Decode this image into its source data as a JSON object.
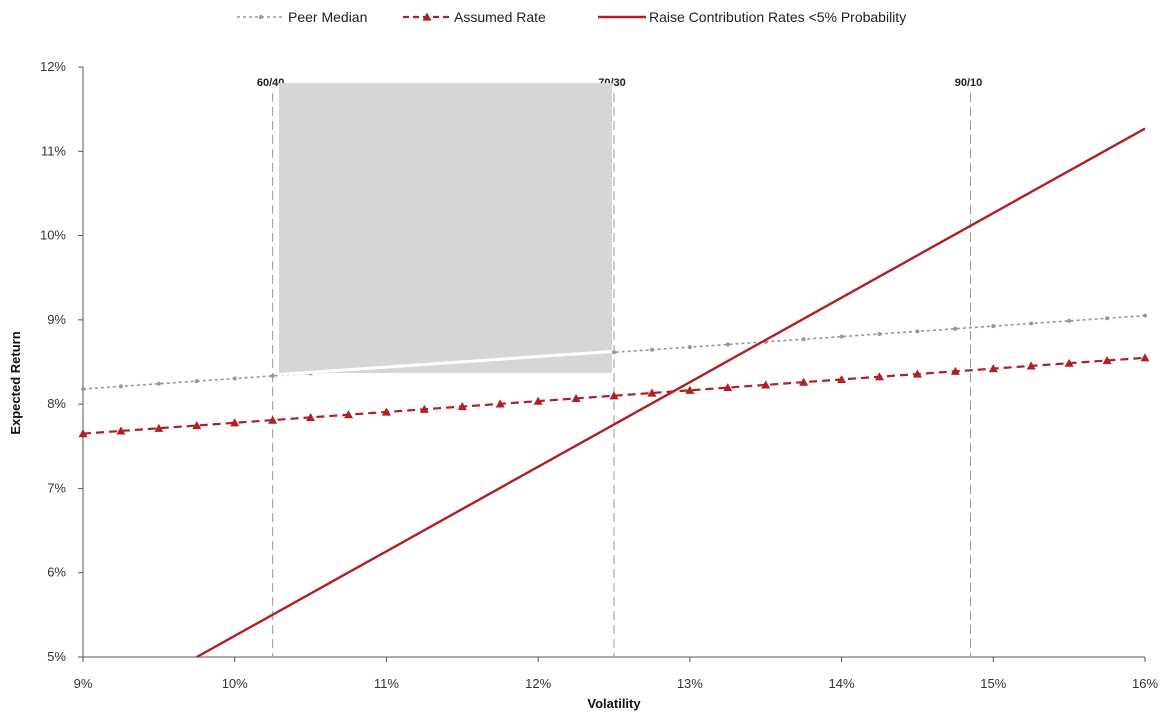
{
  "chart_data": {
    "type": "line",
    "xlabel": "Volatility",
    "ylabel": "Expected Return",
    "xlim": [
      9,
      16
    ],
    "ylim": [
      5,
      12
    ],
    "x_ticks": [
      "9%",
      "10%",
      "11%",
      "12%",
      "13%",
      "14%",
      "15%",
      "16%"
    ],
    "y_ticks": [
      "5%",
      "6%",
      "7%",
      "8%",
      "9%",
      "10%",
      "11%",
      "12%"
    ],
    "legend_position": "top-center",
    "reference_lines": [
      {
        "label": "60/40",
        "x": 10.25
      },
      {
        "label": "70/30",
        "x": 12.5
      },
      {
        "label": "90/10",
        "x": 14.85
      }
    ],
    "series": [
      {
        "name": "Peer Median",
        "color": "#8a9aa6",
        "style": "dotted",
        "marker": "dot",
        "points": [
          [
            9,
            8.18
          ],
          [
            16,
            9.05
          ]
        ]
      },
      {
        "name": "Assumed Rate",
        "color": "#b01f24",
        "style": "dashed",
        "marker": "triangle",
        "points": [
          [
            9,
            7.65
          ],
          [
            16,
            8.55
          ]
        ]
      },
      {
        "name": "Raise Contribution Rates <5% Probability",
        "color": "#b01f24",
        "style": "solid",
        "marker": "none",
        "points": [
          [
            9.75,
            5.0
          ],
          [
            16,
            11.27
          ]
        ]
      }
    ]
  }
}
